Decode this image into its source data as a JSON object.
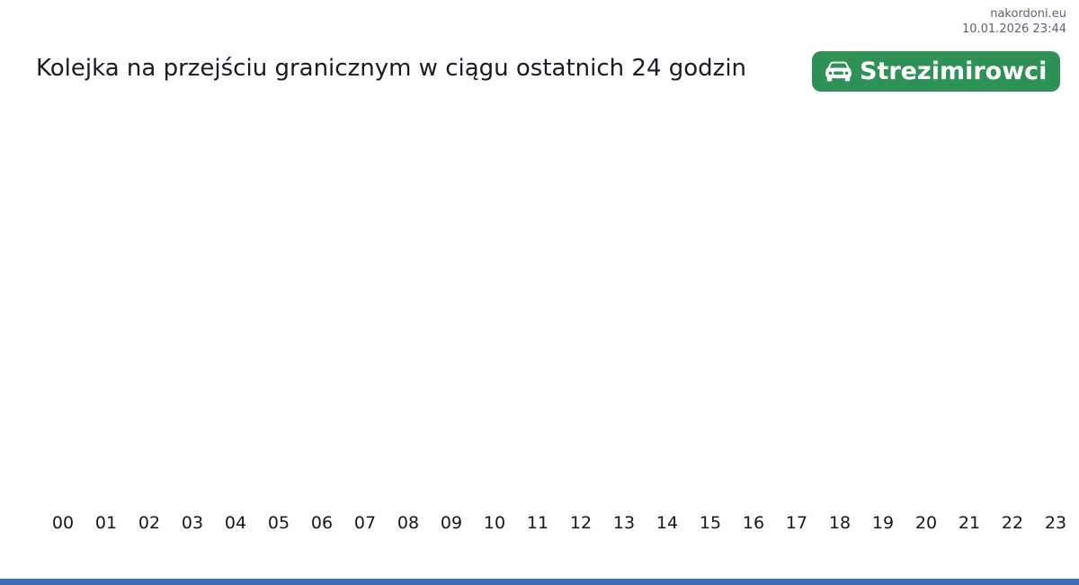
{
  "page": {
    "source": "nakordoni.eu",
    "generated_at": "10.01.2026 23:44"
  },
  "badge": {
    "label": "Strezimirowci",
    "icon": "car-front-icon",
    "bg_color": "#2e9155",
    "text_color": "#ffffff"
  },
  "colors": {
    "background": "#ffffff",
    "title_text": "#191b22",
    "meta_text": "#5b6570",
    "tick_text": "#17171c",
    "series_blue": "#3b6eb5",
    "badge_green": "#2e9155"
  },
  "chart_data": {
    "type": "area",
    "title": "Kolejka na przejściu granicznym w ciągu ostatnich 24 godzin",
    "xlabel": "",
    "ylabel": "",
    "grid": false,
    "legend": false,
    "categories": [
      "00",
      "01",
      "02",
      "03",
      "04",
      "05",
      "06",
      "07",
      "08",
      "09",
      "10",
      "11",
      "12",
      "13",
      "14",
      "15",
      "16",
      "17",
      "18",
      "19",
      "20",
      "21",
      "22",
      "23"
    ],
    "series": [
      {
        "color": "#3b6eb5",
        "values": [
          0,
          0,
          0,
          0,
          0,
          0,
          0,
          0,
          0,
          0,
          0,
          0,
          0,
          0,
          0,
          0,
          0,
          0,
          0,
          0,
          0,
          0,
          0,
          0
        ]
      }
    ]
  }
}
